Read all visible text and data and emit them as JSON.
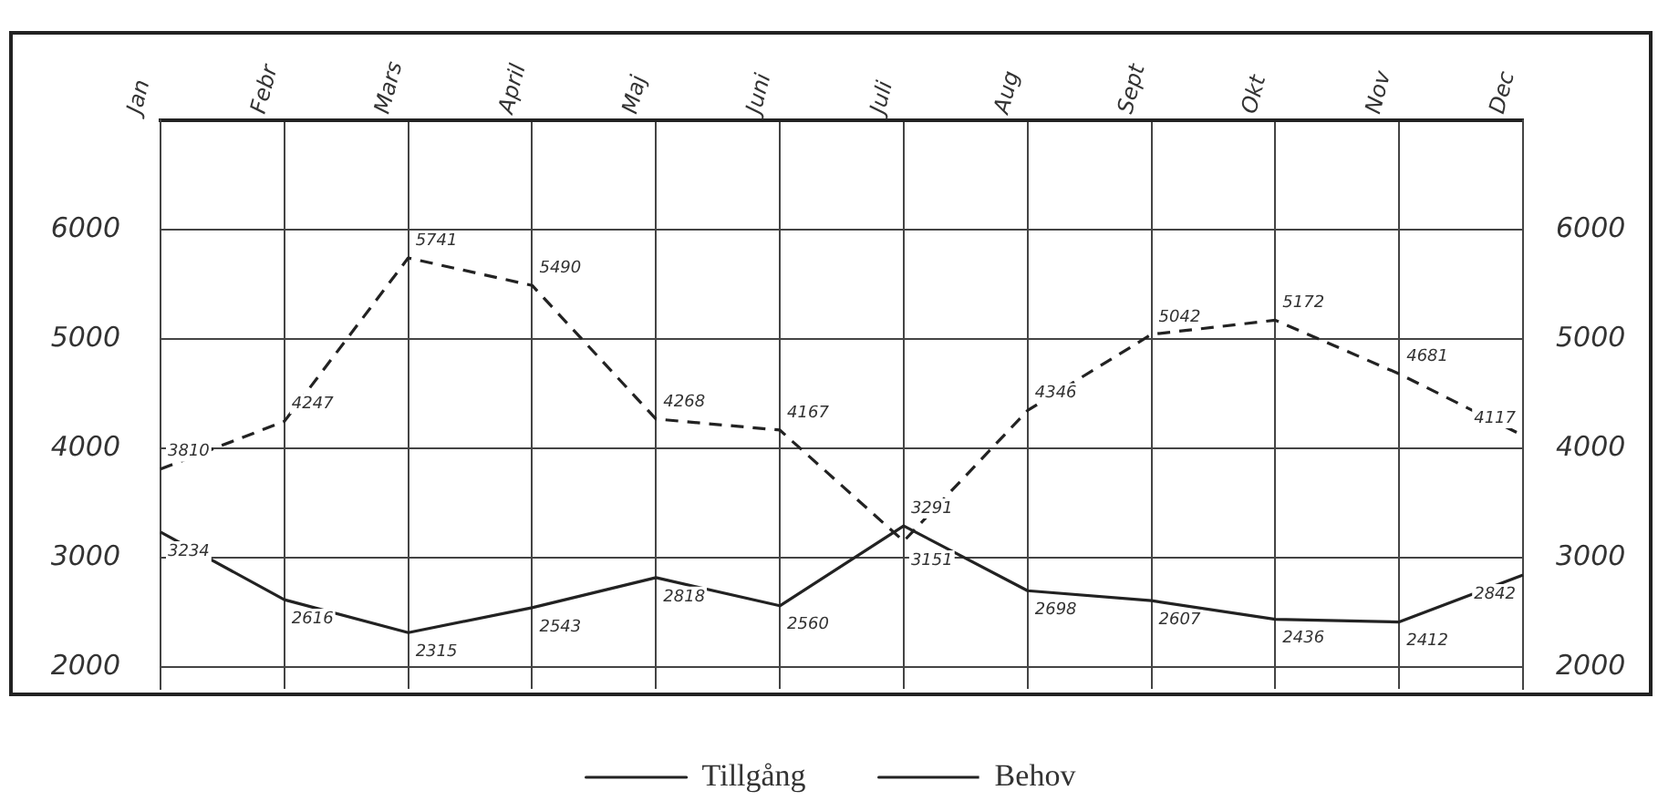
{
  "chart_data": {
    "type": "line",
    "categories": [
      "Jan",
      "Febr",
      "Mars",
      "April",
      "Maj",
      "Juni",
      "Juli",
      "Aug",
      "Sept",
      "Okt",
      "Nov",
      "Dec"
    ],
    "series": [
      {
        "name": "Tillgång",
        "color": "#222222",
        "line_style": "solid",
        "values": [
          3234,
          2616,
          2315,
          2543,
          2818,
          2560,
          3291,
          2698,
          2607,
          2436,
          2412,
          2842
        ]
      },
      {
        "name": "Behov",
        "color": "#222222",
        "line_style": "dashed",
        "values": [
          3810,
          4247,
          5741,
          5490,
          4268,
          4167,
          3151,
          4346,
          5042,
          5172,
          4681,
          4117
        ]
      }
    ],
    "ylim": [
      1800,
      7000
    ],
    "yticks": [
      2000,
      3000,
      4000,
      5000,
      6000
    ],
    "y2lim": [
      1800,
      7000
    ],
    "y2ticks": [
      2000,
      3000,
      4000,
      5000,
      6000
    ],
    "grid": true,
    "legend": "bottom",
    "marker": "none",
    "data_labels": true
  }
}
